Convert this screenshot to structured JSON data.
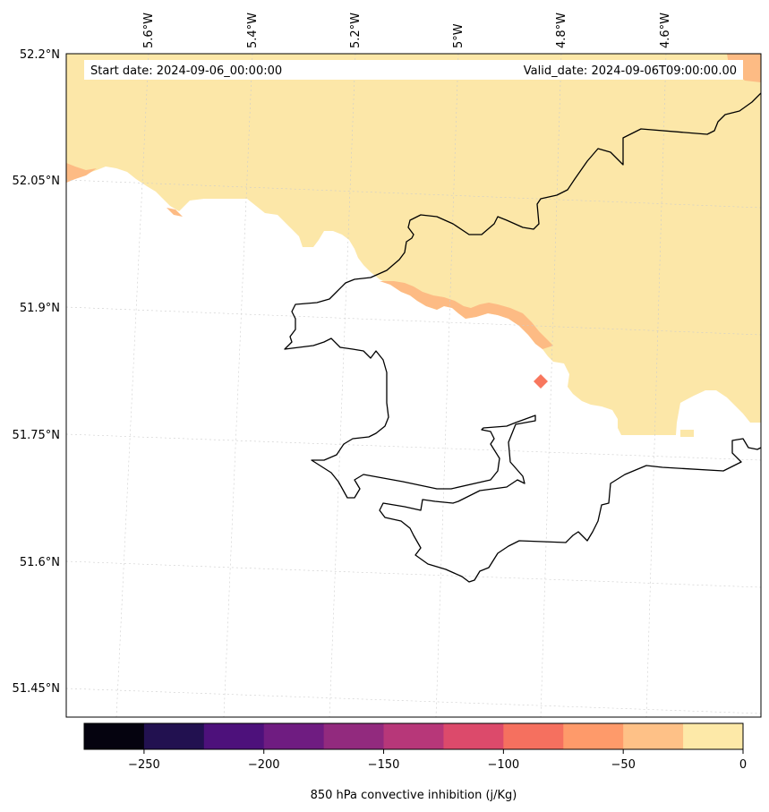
{
  "map": {
    "variable": "850 hPa convective inhibition (j/Kg)",
    "start_date_label": "Start date: 2024-09-06_00:00:00",
    "valid_date_label": "Valid_date: 2024-09-06T09:00:00.00",
    "lat_labels": [
      "52.2°N",
      "52.05°N",
      "51.9°N",
      "51.75°N",
      "51.6°N",
      "51.45°N"
    ],
    "lon_labels": [
      "5.6°W",
      "5.4°W",
      "5.2°W",
      "5°W",
      "4.8°W",
      "4.6°W"
    ],
    "fill_colors": {
      "band_0_to_m25": "#fce7a8",
      "band_m25_to_m50": "#fdbb84",
      "band_m75_to_m100": "#f8775e"
    },
    "coastline_color": "#000000",
    "gridline_color": "#cccccc"
  },
  "colorbar": {
    "colors": [
      "#05030f",
      "#221150",
      "#4d117b",
      "#6f1c81",
      "#922a7e",
      "#b73779",
      "#dc4a6b",
      "#f5705f",
      "#fe9a6a",
      "#fec187",
      "#fde9a8"
    ],
    "ticks": [
      -250,
      -200,
      -150,
      -100,
      -50,
      0
    ],
    "tick_labels": [
      "−250",
      "−200",
      "−150",
      "−100",
      "−50",
      "0"
    ],
    "range": [
      -275,
      0
    ]
  }
}
